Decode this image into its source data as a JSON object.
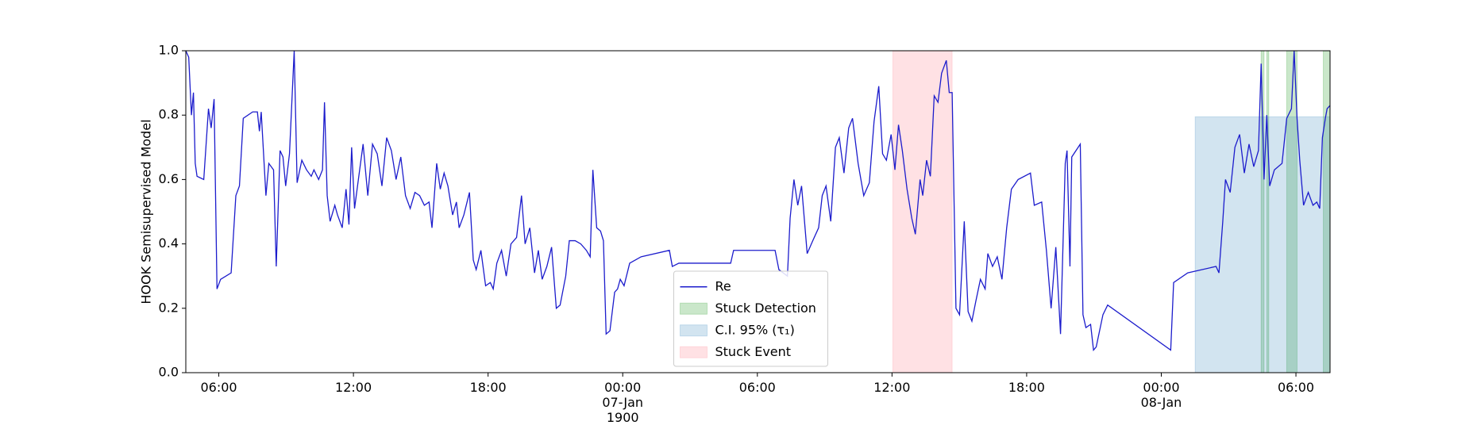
{
  "chart_data": {
    "type": "line",
    "y_label": "HOOK Semisupervised Model",
    "xlim": [
      4.53,
      55.52
    ],
    "ylim": [
      0,
      1
    ],
    "yticks": [
      {
        "value": 0,
        "label": "0.0"
      },
      0.2,
      0.4,
      0.6,
      0.8,
      {
        "value": 1,
        "label": "1.0"
      }
    ],
    "xticks": [
      {
        "value": 6,
        "label": "06:00"
      },
      {
        "value": 12,
        "label": "12:00"
      },
      {
        "value": 18,
        "label": "18:00"
      },
      {
        "value": 24,
        "label": "00:00\n07-Jan\n1900"
      },
      {
        "value": 30,
        "label": "06:00"
      },
      {
        "value": 36,
        "label": "12:00"
      },
      {
        "value": 42,
        "label": "18:00"
      },
      {
        "value": 48,
        "label": "00:00\n08-Jan"
      },
      {
        "value": 54,
        "label": "06:00"
      }
    ],
    "legend": "lower center",
    "series": [
      {
        "name": "Re",
        "color": "#1c1ccc",
        "x": [
          4.53,
          4.66,
          4.78,
          4.87,
          4.95,
          5.03,
          5.33,
          5.54,
          5.66,
          5.79,
          5.92,
          6.08,
          6.55,
          6.76,
          6.92,
          7.09,
          7.51,
          7.72,
          7.81,
          7.89,
          8.1,
          8.23,
          8.44,
          8.56,
          8.73,
          8.86,
          8.98,
          9.15,
          9.36,
          9.49,
          9.7,
          9.91,
          10.12,
          10.24,
          10.45,
          10.62,
          10.71,
          10.83,
          10.96,
          11.17,
          11.29,
          11.5,
          11.67,
          11.8,
          11.92,
          12.05,
          12.22,
          12.43,
          12.64,
          12.85,
          13.06,
          13.27,
          13.48,
          13.69,
          13.9,
          14.11,
          14.32,
          14.53,
          14.74,
          14.95,
          15.16,
          15.37,
          15.5,
          15.71,
          15.87,
          16.04,
          16.21,
          16.42,
          16.59,
          16.71,
          16.92,
          17.17,
          17.34,
          17.47,
          17.68,
          17.89,
          18.1,
          18.23,
          18.39,
          18.6,
          18.81,
          19.02,
          19.27,
          19.49,
          19.65,
          19.86,
          20.07,
          20.24,
          20.41,
          20.62,
          20.83,
          21.04,
          21.21,
          21.46,
          21.62,
          21.88,
          22.13,
          22.38,
          22.55,
          22.67,
          22.84,
          23.01,
          23.14,
          23.26,
          23.43,
          23.64,
          23.77,
          23.89,
          24.06,
          24.31,
          24.82,
          26.08,
          26.21,
          26.5,
          28.81,
          28.94,
          30.79,
          30.96,
          31.34,
          31.46,
          31.63,
          31.8,
          31.97,
          32.22,
          32.47,
          32.73,
          32.89,
          33.06,
          33.27,
          33.48,
          33.65,
          33.86,
          34.07,
          34.24,
          34.49,
          34.74,
          34.99,
          35.2,
          35.41,
          35.58,
          35.75,
          35.96,
          36.13,
          36.29,
          36.46,
          36.67,
          36.88,
          37.04,
          37.25,
          37.37,
          37.54,
          37.71,
          37.88,
          38.05,
          38.21,
          38.42,
          38.55,
          38.68,
          38.85,
          39.01,
          39.22,
          39.39,
          39.56,
          39.73,
          39.94,
          40.15,
          40.27,
          40.48,
          40.69,
          40.9,
          41.11,
          41.32,
          41.62,
          42.17,
          42.34,
          42.67,
          42.88,
          43.09,
          43.3,
          43.51,
          43.72,
          43.8,
          43.93,
          44.01,
          44.39,
          44.51,
          44.64,
          44.85,
          44.98,
          45.1,
          45.4,
          45.61,
          48.42,
          48.55,
          49.18,
          50.44,
          50.57,
          50.74,
          50.86,
          51.07,
          51.28,
          51.49,
          51.7,
          51.91,
          52.12,
          52.33,
          52.45,
          52.58,
          52.7,
          52.83,
          53.04,
          53.38,
          53.59,
          53.8,
          53.92,
          54.05,
          54.17,
          54.34,
          54.55,
          54.76,
          54.93,
          55.06,
          55.18,
          55.31,
          55.39,
          55.52
        ],
        "values": [
          1.0,
          0.98,
          0.8,
          0.87,
          0.65,
          0.61,
          0.6,
          0.82,
          0.76,
          0.85,
          0.26,
          0.29,
          0.31,
          0.55,
          0.58,
          0.79,
          0.81,
          0.81,
          0.75,
          0.81,
          0.55,
          0.65,
          0.63,
          0.33,
          0.69,
          0.67,
          0.58,
          0.68,
          1.0,
          0.59,
          0.66,
          0.63,
          0.61,
          0.63,
          0.6,
          0.63,
          0.84,
          0.55,
          0.47,
          0.52,
          0.49,
          0.45,
          0.57,
          0.46,
          0.7,
          0.51,
          0.6,
          0.71,
          0.55,
          0.71,
          0.68,
          0.58,
          0.73,
          0.69,
          0.6,
          0.67,
          0.55,
          0.51,
          0.56,
          0.55,
          0.52,
          0.53,
          0.45,
          0.65,
          0.57,
          0.62,
          0.58,
          0.49,
          0.53,
          0.45,
          0.49,
          0.56,
          0.35,
          0.32,
          0.38,
          0.27,
          0.28,
          0.26,
          0.34,
          0.38,
          0.3,
          0.4,
          0.42,
          0.55,
          0.4,
          0.45,
          0.31,
          0.38,
          0.29,
          0.33,
          0.39,
          0.2,
          0.21,
          0.3,
          0.41,
          0.41,
          0.4,
          0.38,
          0.36,
          0.63,
          0.45,
          0.44,
          0.41,
          0.12,
          0.13,
          0.25,
          0.26,
          0.29,
          0.27,
          0.34,
          0.36,
          0.38,
          0.33,
          0.34,
          0.34,
          0.38,
          0.38,
          0.32,
          0.3,
          0.48,
          0.6,
          0.52,
          0.58,
          0.37,
          0.41,
          0.45,
          0.55,
          0.58,
          0.47,
          0.7,
          0.73,
          0.62,
          0.76,
          0.79,
          0.65,
          0.55,
          0.59,
          0.78,
          0.89,
          0.68,
          0.66,
          0.74,
          0.63,
          0.77,
          0.69,
          0.57,
          0.48,
          0.43,
          0.6,
          0.55,
          0.66,
          0.61,
          0.86,
          0.84,
          0.93,
          0.97,
          0.87,
          0.87,
          0.2,
          0.18,
          0.47,
          0.19,
          0.16,
          0.22,
          0.29,
          0.26,
          0.37,
          0.33,
          0.36,
          0.29,
          0.45,
          0.57,
          0.6,
          0.62,
          0.52,
          0.53,
          0.38,
          0.2,
          0.39,
          0.12,
          0.65,
          0.69,
          0.33,
          0.67,
          0.71,
          0.18,
          0.14,
          0.15,
          0.07,
          0.08,
          0.18,
          0.21,
          0.07,
          0.28,
          0.31,
          0.33,
          0.31,
          0.47,
          0.6,
          0.56,
          0.7,
          0.74,
          0.62,
          0.71,
          0.64,
          0.69,
          0.96,
          0.6,
          0.8,
          0.58,
          0.63,
          0.65,
          0.79,
          0.82,
          1.0,
          0.79,
          0.66,
          0.52,
          0.56,
          0.52,
          0.53,
          0.51,
          0.73,
          0.79,
          0.82,
          0.83
        ]
      }
    ],
    "spans": [
      {
        "name": "Stuck Detection",
        "color": "#2ca02c",
        "opacity": 0.25,
        "y_range": [
          0,
          1
        ],
        "ranges": [
          [
            52.45,
            52.58
          ],
          [
            52.7,
            52.79
          ],
          [
            53.59,
            54.05
          ],
          [
            55.22,
            55.52
          ]
        ]
      },
      {
        "name": "C.I. 95% (τ₁)",
        "color": "#1f77b4",
        "opacity": 0.2,
        "y_range": [
          0,
          0.795
        ],
        "ranges": [
          [
            49.51,
            55.52
          ]
        ]
      },
      {
        "name": "Stuck Event",
        "color": "#ff9aa5",
        "opacity": 0.3,
        "y_range": [
          0,
          1
        ],
        "ranges": [
          [
            36.04,
            38.68
          ]
        ]
      }
    ]
  }
}
